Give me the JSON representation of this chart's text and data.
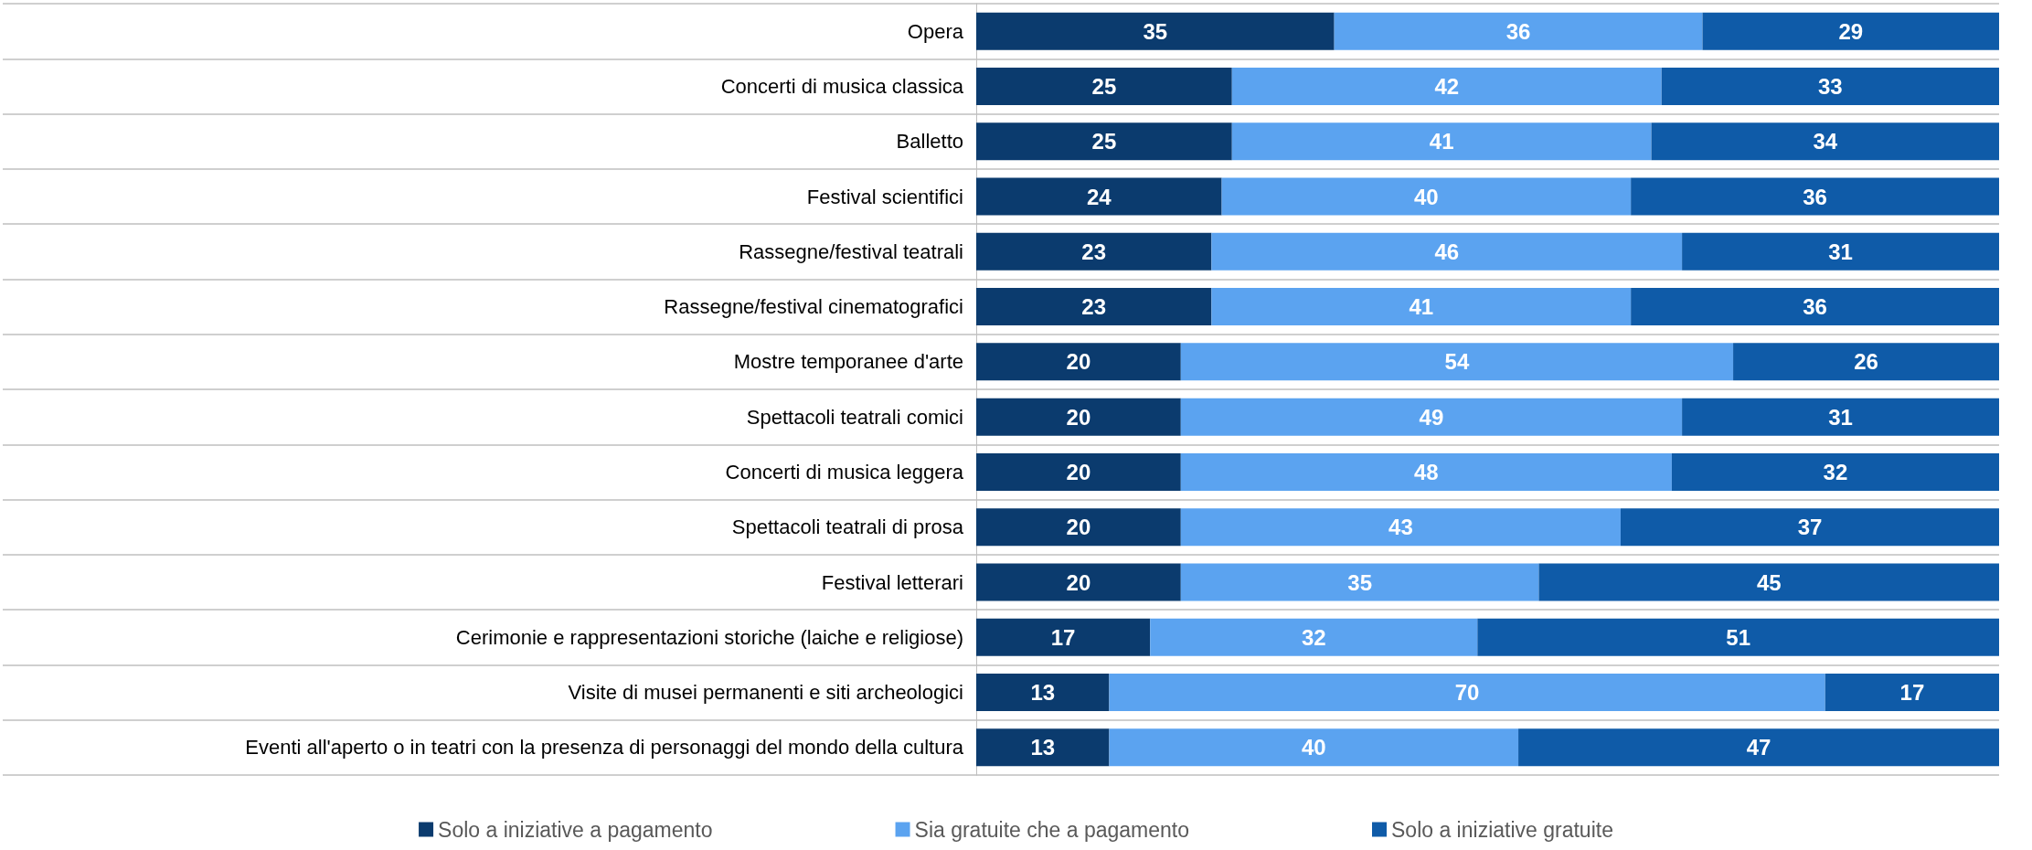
{
  "chart_data": {
    "type": "bar",
    "orientation": "horizontal",
    "stacked": true,
    "data_labels": true,
    "legend": "bottom",
    "grid": "y",
    "tick_labels": "y",
    "categories": [
      "Opera",
      "Concerti di musica classica",
      "Balletto",
      "Festival scientifici",
      "Rassegne/festival teatrali",
      "Rassegne/festival cinematografici",
      "Mostre temporanee d'arte",
      "Spettacoli teatrali comici",
      "Concerti di musica leggera",
      "Spettacoli teatrali di prosa",
      "Festival letterari",
      "Cerimonie e rappresentazioni storiche (laiche e religiose)",
      "Visite di musei permanenti e siti archeologici",
      "Eventi all'aperto o in teatri con la presenza di personaggi del mondo della cultura"
    ],
    "series": [
      {
        "name": "Solo a iniziative a pagamento",
        "color": "#0b3b6e",
        "values": [
          35,
          25,
          25,
          24,
          23,
          23,
          20,
          20,
          20,
          20,
          20,
          17,
          13,
          13
        ]
      },
      {
        "name": "Sia gratuite che a pagamento",
        "color": "#5ba3f0",
        "values": [
          36,
          42,
          41,
          40,
          46,
          41,
          54,
          49,
          48,
          43,
          35,
          32,
          70,
          40
        ]
      },
      {
        "name": "Solo a iniziative gratuite",
        "color": "#0f5ba8",
        "values": [
          29,
          33,
          34,
          36,
          31,
          36,
          26,
          31,
          32,
          37,
          45,
          51,
          17,
          47
        ]
      }
    ]
  }
}
